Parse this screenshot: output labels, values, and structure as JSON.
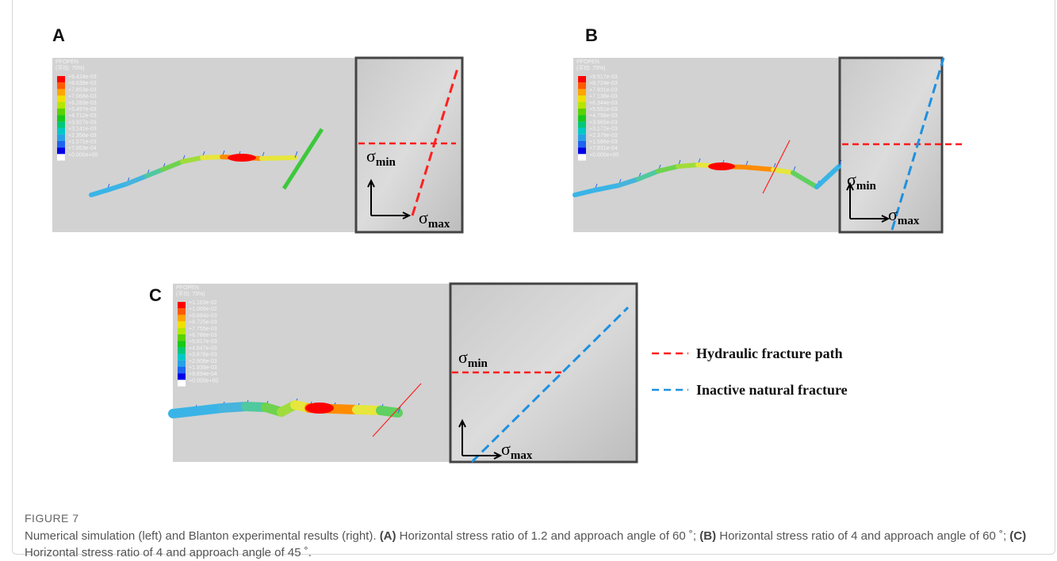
{
  "panels": [
    {
      "label": "A",
      "colorbar": {
        "title": "PFOPEN",
        "subtitle": "(平均: 75%)",
        "values": [
          "+9.424e-03",
          "+8.639e-03",
          "+7.853e-03",
          "+7.068e-03",
          "+6.283e-03",
          "+5.497e-03",
          "+4.712e-03",
          "+3.927e-03",
          "+3.141e-03",
          "+2.356e-03",
          "+1.571e-03",
          "+7.853e-04",
          "+0.000e+00"
        ]
      },
      "sigma_min": {
        "symbol": "σ",
        "sub": "min"
      },
      "sigma_max": {
        "symbol": "σ",
        "sub": "max"
      }
    },
    {
      "label": "B",
      "colorbar": {
        "title": "PFOPEN",
        "subtitle": "(平均: 75%)",
        "values": [
          "+9.517e-03",
          "+8.724e-03",
          "+7.931e-03",
          "+7.138e-03",
          "+6.344e-03",
          "+5.551e-03",
          "+4.758e-03",
          "+3.965e-03",
          "+3.172e-03",
          "+2.379e-03",
          "+1.586e-03",
          "+7.931e-04",
          "+0.000e+00"
        ]
      },
      "sigma_min": {
        "symbol": "σ",
        "sub": "min"
      },
      "sigma_max": {
        "symbol": "σ",
        "sub": "max"
      }
    },
    {
      "label": "C",
      "colorbar": {
        "title": "PFOPEN",
        "subtitle": "(平均: 75%)",
        "values": [
          "+1.163e-02",
          "+1.066e-02",
          "+9.694e-03",
          "+8.725e-03",
          "+7.755e-03",
          "+6.786e-03",
          "+5.817e-03",
          "+4.847e-03",
          "+3.878e-03",
          "+2.908e-03",
          "+1.939e-03",
          "+9.694e-04",
          "+0.000e+00"
        ]
      },
      "sigma_min": {
        "symbol": "σ",
        "sub": "min"
      },
      "sigma_max": {
        "symbol": "σ",
        "sub": "max"
      }
    }
  ],
  "legend": [
    "Hydraulic fracture path",
    "Inactive natural fracture"
  ],
  "caption": {
    "label": "FIGURE 7",
    "parts": [
      {
        "text": "Numerical simulation (left) and Blanton experimental results (right). "
      },
      {
        "text": "(A)",
        "bold": true
      },
      {
        "text": " Horizontal stress ratio of 1.2 and approach angle of 60 ˚; "
      },
      {
        "text": "(B)",
        "bold": true
      },
      {
        "text": " Horizontal stress ratio of 4 and approach angle of 60 ˚; "
      },
      {
        "text": "(C)",
        "bold": true
      },
      {
        "text": " Horizontal stress ratio of 4 and approach angle of 45 ˚."
      }
    ]
  }
}
